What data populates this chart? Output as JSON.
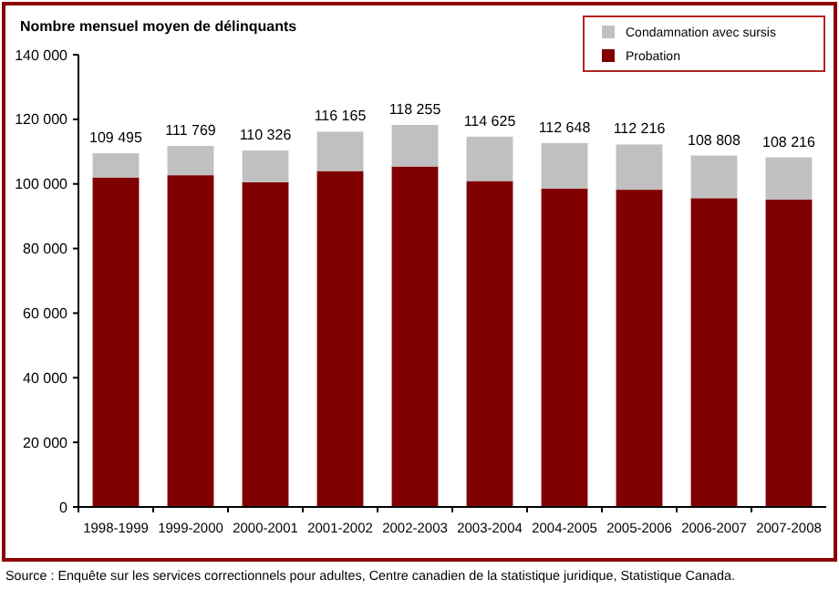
{
  "chart_data": {
    "type": "bar",
    "stacked": true,
    "ylabel": "Nombre mensuel moyen de délinquants",
    "categories": [
      "1998-1999",
      "1999-2000",
      "2000-2001",
      "2001-2002",
      "2002-2003",
      "2003-2004",
      "2004-2005",
      "2005-2006",
      "2006-2007",
      "2007-2008"
    ],
    "series": [
      {
        "name": "Probation",
        "color": "#800000",
        "values": [
          102000,
          102700,
          100500,
          104000,
          105400,
          100900,
          98600,
          98200,
          95600,
          95200
        ]
      },
      {
        "name": "Condamnation avec sursis",
        "color": "#c0c0c0",
        "values": [
          7495,
          9069,
          9826,
          12165,
          12855,
          13725,
          14048,
          14016,
          13208,
          13016
        ]
      }
    ],
    "totals": [
      "109 495",
      "111 769",
      "110 326",
      "116 165",
      "118 255",
      "114 625",
      "112 648",
      "112 216",
      "108 808",
      "108 216"
    ],
    "ylim": [
      0,
      140000
    ],
    "yticks": [
      {
        "value": 0,
        "label": "0"
      },
      {
        "value": 20000,
        "label": "20 000"
      },
      {
        "value": 40000,
        "label": "40 000"
      },
      {
        "value": 60000,
        "label": "60 000"
      },
      {
        "value": 80000,
        "label": "80 000"
      },
      {
        "value": 100000,
        "label": "100 000"
      },
      {
        "value": 120000,
        "label": "120 000"
      },
      {
        "value": 140000,
        "label": "140 000"
      }
    ],
    "grid": false,
    "legend": "top right",
    "annotations": [
      "Source : Enquête sur les services correctionnels pour adultes, Centre canadien de la statistique juridique, Statistique Canada."
    ]
  }
}
